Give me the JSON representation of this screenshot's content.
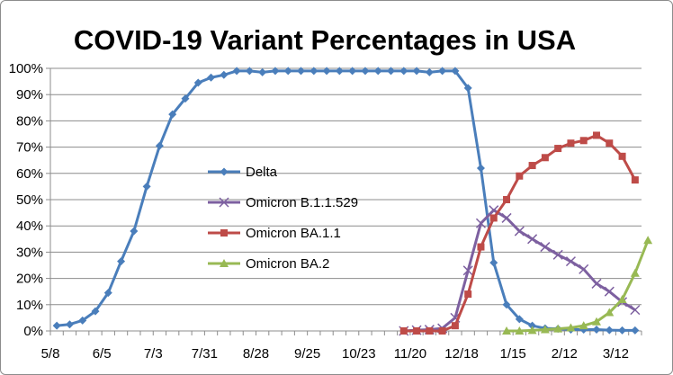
{
  "chart_data": {
    "type": "line",
    "title": "COVID-19 Variant Percentages in USA",
    "xlabel": "",
    "ylabel": "",
    "ylim": [
      0,
      100
    ],
    "y_ticks": [
      "0%",
      "10%",
      "20%",
      "30%",
      "40%",
      "50%",
      "60%",
      "70%",
      "80%",
      "90%",
      "100%"
    ],
    "x_tick_labels": [
      "5/8",
      "6/5",
      "7/3",
      "7/31",
      "8/28",
      "9/25",
      "10/23",
      "11/20",
      "12/18",
      "1/15",
      "2/12",
      "3/12"
    ],
    "x_tick_week_index": [
      0,
      4,
      8,
      12,
      16,
      20,
      24,
      28,
      32,
      36,
      40,
      44
    ],
    "weeks": 46,
    "legend_position": "center-left",
    "series": [
      {
        "name": "Delta",
        "color": "#4a7ebb",
        "marker": "diamond",
        "start_week": 0,
        "values": [
          2,
          2.5,
          4,
          7.5,
          14.5,
          26.5,
          38,
          55,
          70.5,
          82.5,
          88.5,
          94.5,
          96.5,
          97.5,
          99,
          99,
          98.5,
          99,
          99,
          99,
          99,
          99,
          99,
          99,
          99,
          99,
          99,
          99,
          99,
          98.5,
          99,
          99,
          92.5,
          62,
          26,
          10,
          4.5,
          2,
          1,
          0.8,
          0.5,
          0.5,
          0.5,
          0.3,
          0.2,
          0.2
        ]
      },
      {
        "name": "Omicron B.1.1.529",
        "color": "#7d60a0",
        "marker": "x",
        "start_week": 27,
        "values": [
          0,
          0.3,
          0.5,
          1,
          5,
          23,
          41,
          46,
          43,
          38,
          35,
          32,
          29,
          26.5,
          23.5,
          18,
          15,
          11,
          8
        ]
      },
      {
        "name": "Omicron BA.1.1",
        "color": "#be4b48",
        "marker": "square",
        "start_week": 27,
        "values": [
          0,
          0,
          0,
          0,
          2,
          14,
          32,
          43,
          50,
          59,
          63,
          66,
          69.5,
          71.5,
          72.5,
          74.5,
          71.5,
          66.5,
          57.5
        ]
      },
      {
        "name": "Omicron BA.2",
        "color": "#98b954",
        "marker": "triangle",
        "start_week": 35,
        "values": [
          0,
          0,
          0.2,
          0.5,
          0.8,
          1.2,
          2,
          3.5,
          7,
          12,
          22,
          34.5
        ]
      }
    ]
  }
}
